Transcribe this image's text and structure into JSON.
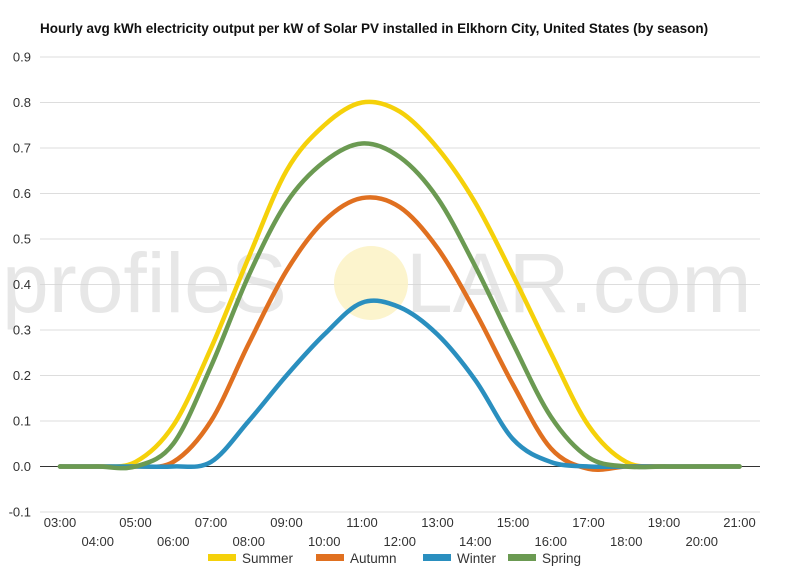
{
  "chart_data": {
    "type": "line",
    "title": "Hourly avg kWh electricity output per kW of Solar PV installed in Elkhorn City, United States (by season)",
    "xlabel": "",
    "ylabel": "",
    "x": [
      "03:00",
      "04:00",
      "05:00",
      "06:00",
      "07:00",
      "08:00",
      "09:00",
      "10:00",
      "11:00",
      "12:00",
      "13:00",
      "14:00",
      "15:00",
      "16:00",
      "17:00",
      "18:00",
      "19:00",
      "20:00",
      "21:00"
    ],
    "ylim": [
      -0.1,
      0.9
    ],
    "yticks": [
      -0.1,
      0.0,
      0.1,
      0.2,
      0.3,
      0.4,
      0.5,
      0.6,
      0.7,
      0.8,
      0.9
    ],
    "ytick_labels": [
      "-0.1",
      "0.0",
      "0.1",
      "0.2",
      "0.3",
      "0.4",
      "0.5",
      "0.6",
      "0.7",
      "0.8",
      "0.9"
    ],
    "grid": true,
    "legend_position": "bottom",
    "series": [
      {
        "name": "Summer",
        "color": "#f5d10a",
        "values": [
          0,
          0,
          0.01,
          0.09,
          0.26,
          0.46,
          0.65,
          0.75,
          0.8,
          0.78,
          0.7,
          0.58,
          0.42,
          0.25,
          0.09,
          0.01,
          0,
          0,
          0
        ]
      },
      {
        "name": "Autumn",
        "color": "#e07020",
        "values": [
          0,
          0,
          0,
          0.01,
          0.1,
          0.27,
          0.43,
          0.54,
          0.59,
          0.57,
          0.48,
          0.34,
          0.18,
          0.04,
          -0.005,
          0,
          0,
          0,
          0
        ]
      },
      {
        "name": "Winter",
        "color": "#2a8fbf",
        "values": [
          0,
          0,
          0,
          0,
          0.01,
          0.1,
          0.2,
          0.29,
          0.36,
          0.35,
          0.29,
          0.19,
          0.06,
          0.01,
          0,
          0,
          0,
          0,
          0
        ]
      },
      {
        "name": "Spring",
        "color": "#6b9a52",
        "values": [
          0,
          0,
          0,
          0.05,
          0.22,
          0.42,
          0.58,
          0.67,
          0.71,
          0.68,
          0.59,
          0.44,
          0.27,
          0.11,
          0.02,
          0,
          0,
          0,
          0
        ]
      }
    ],
    "watermark": {
      "text_left": "profileS",
      "text_right": "LAR.com"
    }
  }
}
